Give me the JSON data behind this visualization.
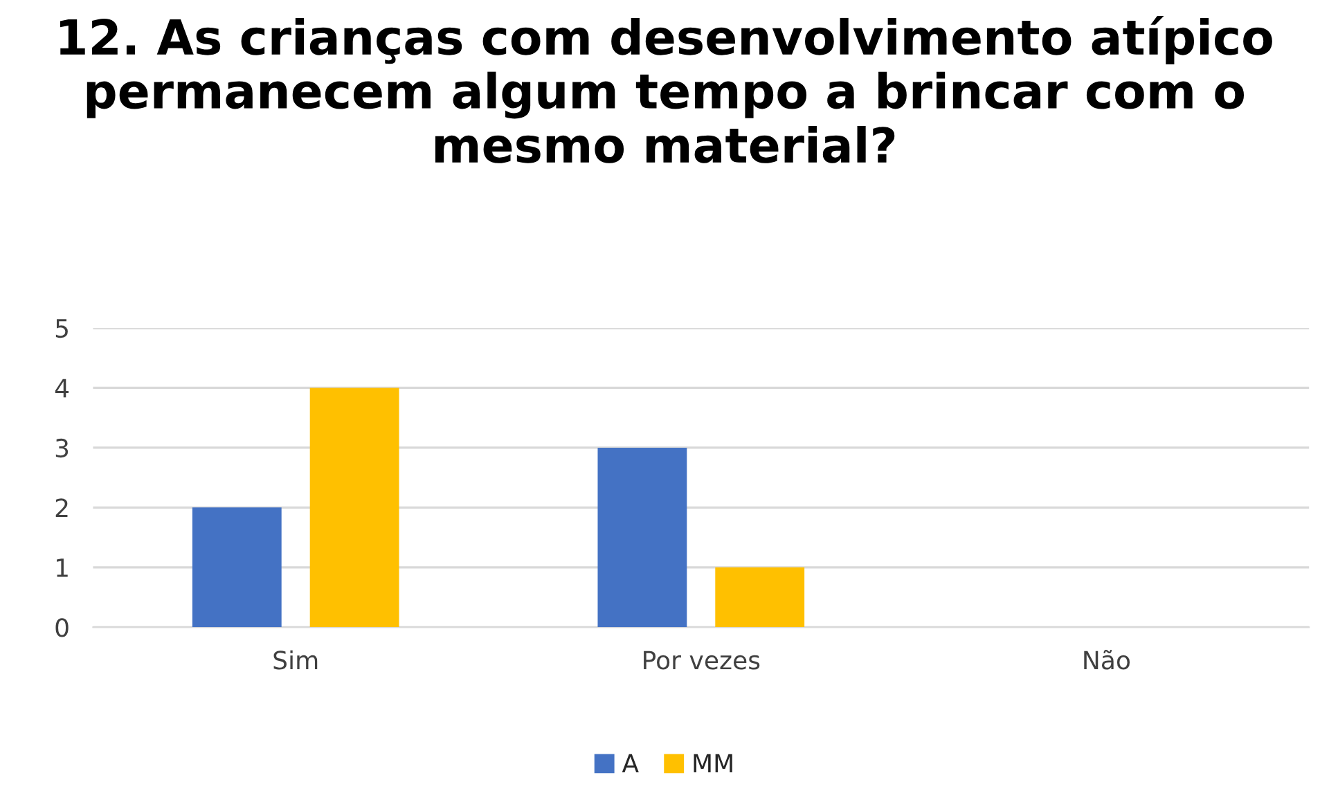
{
  "chart_data": {
    "type": "bar",
    "title": "12. As crianças com desenvolvimento atípico permanecem algum tempo a brincar com o mesmo material?",
    "categories": [
      "Sim",
      "Por vezes",
      "Não"
    ],
    "series": [
      {
        "name": "A",
        "color": "#4472c4",
        "values": [
          2,
          3,
          0
        ]
      },
      {
        "name": "MM",
        "color": "#ffc000",
        "values": [
          4,
          1,
          0
        ]
      }
    ],
    "ylim": [
      0,
      5
    ],
    "yticks": [
      0,
      1,
      2,
      3,
      4,
      5
    ],
    "grid": "y",
    "legend": "bottom"
  }
}
